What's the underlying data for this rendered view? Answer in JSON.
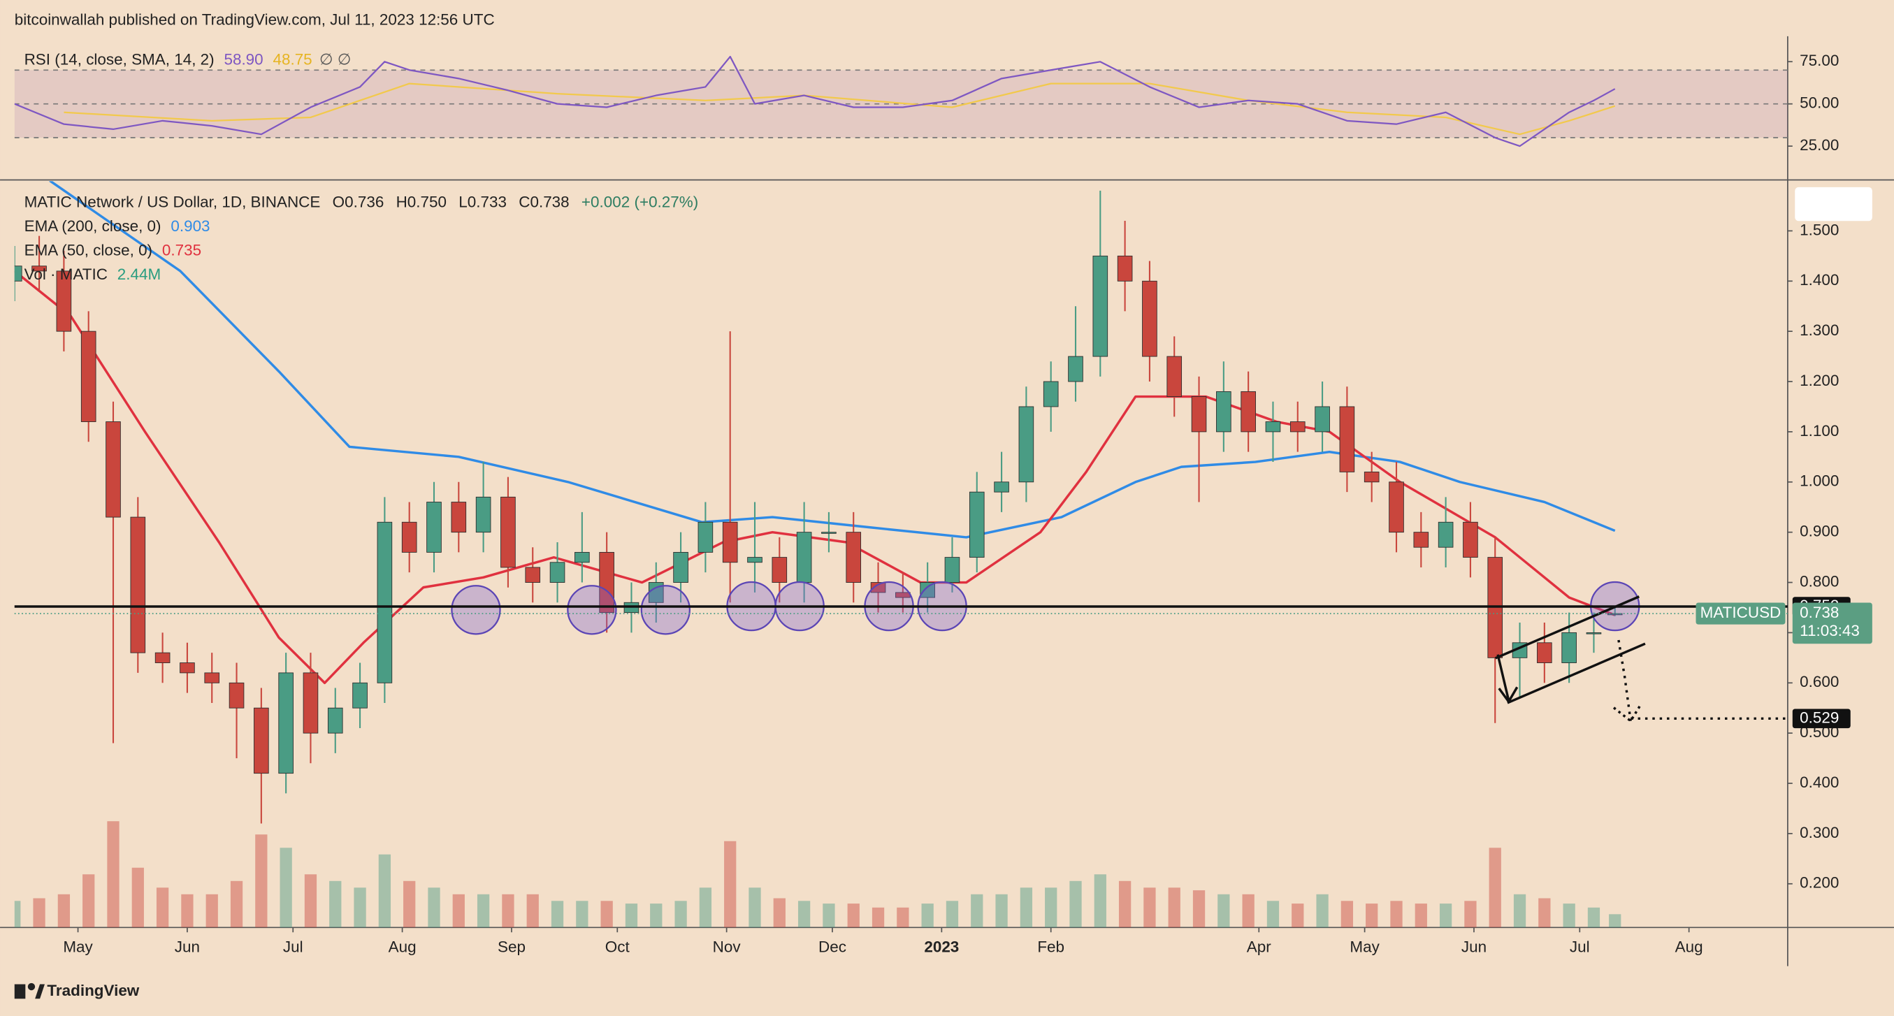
{
  "header": {
    "publisher": "bitcoinwallah published on TradingView.com, Jul 11, 2023 12:56 UTC",
    "brand": "TradingView"
  },
  "chart_data": {
    "type": "candlestick",
    "symbol": "MATIC Network / US Dollar, 1D, BINANCE",
    "ohlc_labels": [
      "O0.736",
      "H0.750",
      "L0.733",
      "C0.738"
    ],
    "change": "+0.002 (+0.27%)",
    "up_color": "#4a9c84",
    "down_color": "#c9463d",
    "xlim": [
      0,
      503
    ],
    "xticks": [
      {
        "value": 18,
        "label": "May"
      },
      {
        "value": 49,
        "label": "Jun"
      },
      {
        "value": 79,
        "label": "Jul"
      },
      {
        "value": 110,
        "label": "Aug"
      },
      {
        "value": 141,
        "label": "Sep"
      },
      {
        "value": 171,
        "label": "Oct"
      },
      {
        "value": 202,
        "label": "Nov"
      },
      {
        "value": 232,
        "label": "Dec"
      },
      {
        "value": 263,
        "label": "2023"
      },
      {
        "value": 294,
        "label": "Feb"
      },
      {
        "value": 353,
        "label": "Apr"
      },
      {
        "value": 383,
        "label": "May"
      },
      {
        "value": 414,
        "label": "Jun"
      },
      {
        "value": 444,
        "label": "Jul"
      },
      {
        "value": 475,
        "label": "Aug"
      }
    ],
    "ylim": [
      0.113,
      1.599
    ],
    "yticks": [
      {
        "value": 1.5,
        "label": "1.500"
      },
      {
        "value": 1.4,
        "label": "1.400"
      },
      {
        "value": 1.3,
        "label": "1.300"
      },
      {
        "value": 1.2,
        "label": "1.200"
      },
      {
        "value": 1.1,
        "label": "1.100"
      },
      {
        "value": 1.0,
        "label": "1.000"
      },
      {
        "value": 0.9,
        "label": "0.900"
      },
      {
        "value": 0.8,
        "label": "0.800"
      },
      {
        "value": 0.7,
        "label": "0.700"
      },
      {
        "value": 0.6,
        "label": "0.600"
      },
      {
        "value": 0.5,
        "label": "0.500"
      },
      {
        "value": 0.4,
        "label": "0.400"
      },
      {
        "value": 0.3,
        "label": "0.300"
      },
      {
        "value": 0.2,
        "label": "0.200"
      }
    ],
    "series": [
      {
        "name": "MATICUSD",
        "x": [
          0,
          7,
          14,
          21,
          28,
          35,
          42,
          49,
          56,
          63,
          70,
          77,
          84,
          91,
          98,
          105,
          112,
          119,
          126,
          133,
          140,
          147,
          154,
          161,
          168,
          175,
          182,
          189,
          196,
          203,
          210,
          217,
          224,
          231,
          238,
          245,
          252,
          259,
          266,
          273,
          280,
          287,
          294,
          301,
          308,
          315,
          322,
          329,
          336,
          343,
          350,
          357,
          364,
          371,
          378,
          385,
          392,
          399,
          406,
          413,
          420,
          427,
          434,
          441,
          448,
          454
        ],
        "open": [
          1.4,
          1.43,
          1.42,
          1.3,
          1.12,
          0.93,
          0.66,
          0.64,
          0.62,
          0.6,
          0.55,
          0.42,
          0.62,
          0.5,
          0.55,
          0.6,
          0.92,
          0.86,
          0.96,
          0.9,
          0.97,
          0.83,
          0.8,
          0.84,
          0.86,
          0.74,
          0.76,
          0.8,
          0.86,
          0.92,
          0.84,
          0.85,
          0.8,
          0.9,
          0.9,
          0.8,
          0.78,
          0.77,
          0.8,
          0.85,
          0.98,
          1.0,
          1.15,
          1.2,
          1.25,
          1.45,
          1.4,
          1.25,
          1.17,
          1.1,
          1.18,
          1.1,
          1.12,
          1.1,
          1.15,
          1.02,
          1.0,
          0.9,
          0.87,
          0.92,
          0.85,
          0.65,
          0.68,
          0.64,
          0.7,
          0.736
        ],
        "high": [
          1.47,
          1.49,
          1.46,
          1.34,
          1.16,
          0.97,
          0.7,
          0.68,
          0.66,
          0.64,
          0.59,
          0.66,
          0.66,
          0.59,
          0.64,
          0.97,
          0.96,
          1.0,
          1.0,
          1.04,
          1.01,
          0.87,
          0.88,
          0.94,
          0.9,
          0.8,
          0.84,
          0.9,
          0.96,
          1.3,
          0.96,
          0.89,
          0.96,
          0.94,
          0.94,
          0.84,
          0.82,
          0.84,
          0.89,
          1.02,
          1.06,
          1.19,
          1.24,
          1.35,
          1.58,
          1.52,
          1.44,
          1.29,
          1.21,
          1.24,
          1.22,
          1.16,
          1.16,
          1.2,
          1.19,
          1.06,
          1.04,
          0.94,
          0.97,
          0.96,
          0.89,
          0.72,
          0.72,
          0.74,
          0.74,
          0.75
        ],
        "low": [
          1.36,
          1.38,
          1.26,
          1.08,
          0.48,
          0.62,
          0.6,
          0.58,
          0.56,
          0.45,
          0.32,
          0.38,
          0.44,
          0.46,
          0.51,
          0.56,
          0.82,
          0.82,
          0.86,
          0.86,
          0.79,
          0.76,
          0.76,
          0.8,
          0.7,
          0.7,
          0.72,
          0.76,
          0.82,
          0.76,
          0.78,
          0.76,
          0.76,
          0.86,
          0.76,
          0.74,
          0.74,
          0.74,
          0.78,
          0.82,
          0.94,
          0.96,
          1.1,
          1.16,
          1.21,
          1.34,
          1.2,
          1.13,
          0.96,
          1.06,
          1.06,
          1.04,
          1.06,
          1.06,
          0.98,
          0.96,
          0.86,
          0.83,
          0.83,
          0.81,
          0.52,
          0.57,
          0.6,
          0.6,
          0.66,
          0.733
        ],
        "close": [
          1.43,
          1.42,
          1.3,
          1.12,
          0.93,
          0.66,
          0.64,
          0.62,
          0.6,
          0.55,
          0.42,
          0.62,
          0.5,
          0.55,
          0.6,
          0.92,
          0.86,
          0.96,
          0.9,
          0.97,
          0.83,
          0.8,
          0.84,
          0.86,
          0.74,
          0.76,
          0.8,
          0.86,
          0.92,
          0.84,
          0.85,
          0.8,
          0.9,
          0.9,
          0.8,
          0.78,
          0.77,
          0.8,
          0.85,
          0.98,
          1.0,
          1.15,
          1.2,
          1.25,
          1.45,
          1.4,
          1.25,
          1.17,
          1.1,
          1.18,
          1.1,
          1.12,
          1.1,
          1.15,
          1.02,
          1.0,
          0.9,
          0.87,
          0.92,
          0.85,
          0.65,
          0.68,
          0.64,
          0.7,
          0.7,
          0.738
        ],
        "volume": [
          20,
          22,
          25,
          40,
          80,
          45,
          30,
          25,
          25,
          35,
          70,
          60,
          40,
          35,
          30,
          55,
          35,
          30,
          25,
          25,
          25,
          25,
          20,
          20,
          20,
          18,
          18,
          20,
          30,
          65,
          30,
          22,
          20,
          18,
          18,
          15,
          15,
          18,
          20,
          25,
          25,
          30,
          30,
          35,
          40,
          35,
          30,
          30,
          28,
          25,
          25,
          20,
          18,
          25,
          20,
          18,
          20,
          18,
          18,
          20,
          60,
          25,
          22,
          18,
          15,
          10
        ]
      }
    ],
    "volume_ylim": [
      0,
      100
    ],
    "volume_legend": {
      "name": "Vol · MATIC",
      "value": "2.44M"
    },
    "overlays": [
      {
        "name": "EMA (200, close, 0)",
        "value": 0.903,
        "color": "#2f8be6",
        "x": [
          10,
          47,
          75,
          95,
          126,
          157,
          195,
          215,
          242,
          270,
          297,
          318,
          331,
          352,
          373,
          393,
          410,
          434,
          454
        ],
        "values": [
          1.6,
          1.42,
          1.22,
          1.07,
          1.05,
          1.0,
          0.92,
          0.93,
          0.91,
          0.89,
          0.93,
          1.0,
          1.03,
          1.04,
          1.06,
          1.04,
          1.0,
          0.96,
          0.903
        ]
      },
      {
        "name": "EMA (50, close, 0)",
        "value": 0.735,
        "color": "#e0313f",
        "x": [
          0,
          16,
          37,
          58,
          75,
          88,
          99,
          116,
          133,
          153,
          178,
          201,
          215,
          236,
          257,
          270,
          291,
          304,
          318,
          338,
          358,
          373,
          393,
          420,
          441,
          454
        ],
        "values": [
          1.42,
          1.33,
          1.1,
          0.88,
          0.69,
          0.6,
          0.68,
          0.79,
          0.81,
          0.85,
          0.8,
          0.88,
          0.9,
          0.88,
          0.8,
          0.8,
          0.9,
          1.02,
          1.17,
          1.17,
          1.12,
          1.1,
          1.0,
          0.89,
          0.77,
          0.735
        ]
      }
    ],
    "levels": [
      {
        "value": 0.752,
        "style": "solid"
      },
      {
        "value": 0.529,
        "style": "dotted"
      }
    ],
    "last_price": {
      "value": 0.738,
      "label": "MATICUSD",
      "countdown": "11:03:43"
    },
    "rsi": {
      "name": "RSI (14, close, SMA, 14, 2)",
      "last_value": {
        "value": 58.9,
        "label": "58.90"
      },
      "sma_value": {
        "value": 48.75,
        "label": "48.75"
      },
      "extra": "∅ ∅",
      "color": "#7e57c2",
      "sma_color": "#f2c94c",
      "ylim": [
        5.7,
        82.9
      ],
      "yticks": [
        {
          "value": 75,
          "label": "75.00"
        },
        {
          "value": 50,
          "label": "50.00"
        },
        {
          "value": 25,
          "label": "25.00"
        }
      ],
      "bands": [
        70,
        50,
        30
      ],
      "x": [
        0,
        14,
        28,
        42,
        56,
        70,
        84,
        98,
        105,
        112,
        126,
        140,
        154,
        168,
        182,
        196,
        203,
        210,
        224,
        238,
        252,
        266,
        280,
        294,
        308,
        322,
        336,
        350,
        364,
        378,
        392,
        406,
        420,
        427,
        434,
        441,
        448,
        454
      ],
      "values": [
        50,
        38,
        35,
        40,
        37,
        32,
        48,
        60,
        75,
        70,
        65,
        58,
        50,
        48,
        55,
        60,
        78,
        50,
        55,
        48,
        48,
        52,
        65,
        70,
        75,
        60,
        48,
        52,
        50,
        40,
        38,
        45,
        30,
        25,
        35,
        45,
        52,
        58.9
      ],
      "sma_x": [
        14,
        56,
        84,
        112,
        154,
        196,
        224,
        266,
        294,
        322,
        350,
        378,
        406,
        427,
        441,
        454
      ],
      "sma_values": [
        45,
        40,
        42,
        62,
        56,
        52,
        55,
        48,
        62,
        62,
        52,
        45,
        42,
        32,
        40,
        48.75
      ]
    }
  }
}
